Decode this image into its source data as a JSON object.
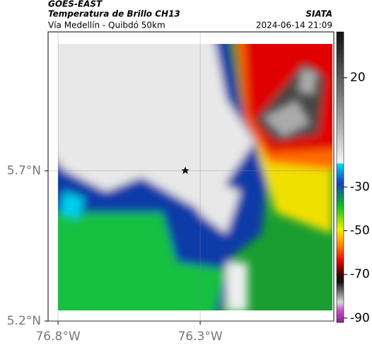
{
  "header": {
    "title": "GOES-EAST",
    "subtitle": "Temperatura de Brillo CH13",
    "source": "SIATA",
    "route": "Vía Medellín - Quibdó 50km",
    "datetime": "2024-06-14 21:09"
  },
  "map": {
    "xlim": [
      -76.835,
      -75.83
    ],
    "ylim": [
      5.2,
      6.162
    ],
    "xticks": [
      {
        "value": -76.8,
        "label": "76.8°W"
      },
      {
        "value": -76.3,
        "label": "76.3°W"
      }
    ],
    "yticks": [
      {
        "value": 5.2,
        "label": "5.2°N"
      },
      {
        "value": 5.7,
        "label": "5.7°N"
      }
    ],
    "grid": true
  },
  "colorbar": {
    "lim": [
      -92,
      41
    ],
    "ticks": [
      20,
      -30,
      -50,
      -70,
      -90
    ]
  }
}
